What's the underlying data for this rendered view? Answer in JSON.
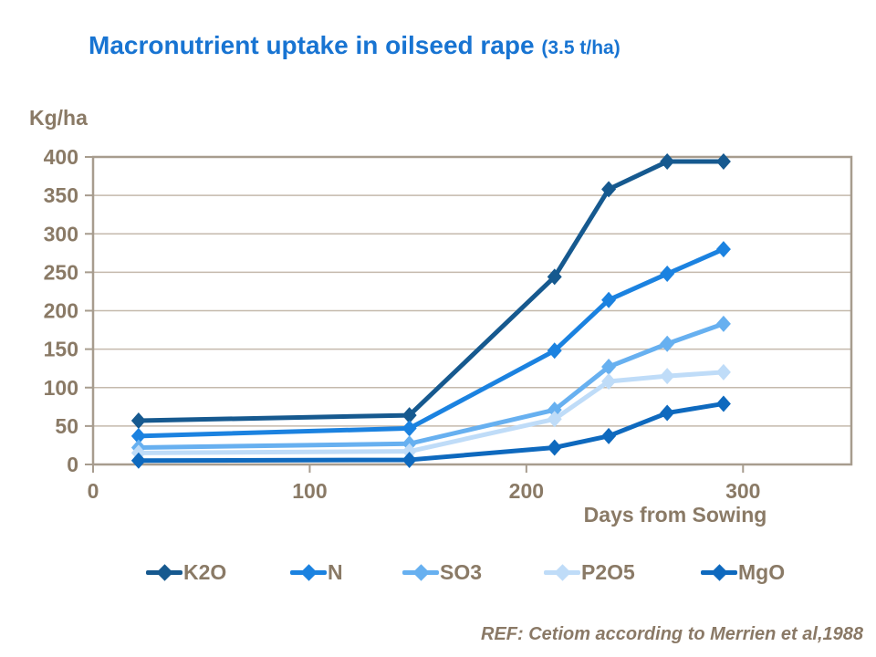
{
  "title": {
    "main": "Macronutrient uptake in oilseed rape",
    "annotation": "(3.5 t/ha)"
  },
  "footer": {
    "ref_note": "REF: Cetiom according to Merrien et al,1988"
  },
  "colors": {
    "title_text": "#1874D2",
    "axis_text": "#8A7A66",
    "gridline": "#C4B9AC",
    "axis_border": "#A79C8E",
    "background": "#FFFFFF"
  },
  "chart_data": {
    "type": "line",
    "title": "Macronutrient uptake in oilseed rape (3.5 t/ha)",
    "xlabel": "Days from Sowing",
    "ylabel": "Kg/ha",
    "xlim": [
      0,
      350
    ],
    "ylim": [
      0,
      400
    ],
    "xticks": [
      0,
      100,
      200,
      300
    ],
    "yticks": [
      0,
      50,
      100,
      150,
      200,
      250,
      300,
      350,
      400
    ],
    "grid": true,
    "legend_position": "bottom",
    "marker": "diamond",
    "x": [
      21,
      146,
      213,
      238,
      265,
      291
    ],
    "series": [
      {
        "name": "K2O",
        "color": "#16598F",
        "values": [
          57,
          64,
          244,
          358,
          394,
          394
        ]
      },
      {
        "name": "N",
        "color": "#1B82E0",
        "values": [
          37,
          47,
          148,
          214,
          248,
          280
        ]
      },
      {
        "name": "SO3",
        "color": "#67B0F0",
        "values": [
          22,
          27,
          71,
          127,
          157,
          183
        ]
      },
      {
        "name": "P2O5",
        "color": "#BFDCF8",
        "values": [
          15,
          17,
          59,
          108,
          115,
          120
        ]
      },
      {
        "name": "MgO",
        "color": "#0E69BE",
        "values": [
          5,
          6,
          22,
          37,
          67,
          79
        ]
      }
    ]
  }
}
